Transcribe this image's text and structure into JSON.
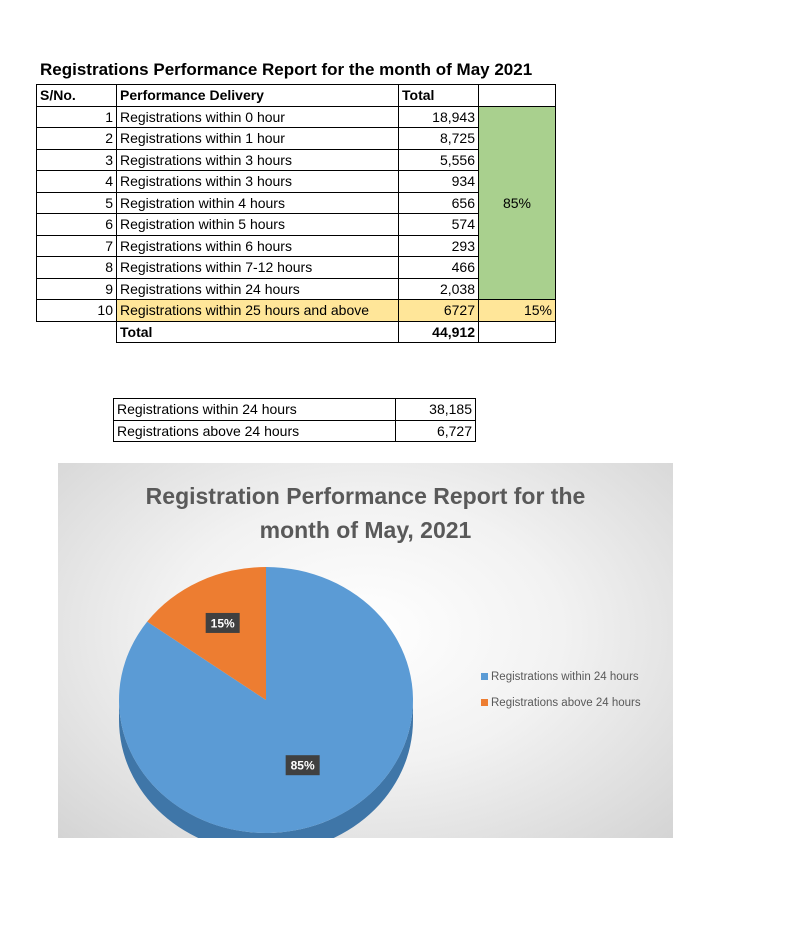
{
  "report": {
    "title": "Registrations Performance Report for the month of May 2021",
    "headers": {
      "sno": "S/No.",
      "delivery": "Performance Delivery",
      "total": "Total"
    },
    "rows": [
      {
        "sno": "1",
        "label": "Registrations within 0 hour",
        "total": "18,943"
      },
      {
        "sno": "2",
        "label": "Registrations within 1 hour",
        "total": "8,725"
      },
      {
        "sno": "3",
        "label": "Registrations within 3 hours",
        "total": "5,556"
      },
      {
        "sno": "4",
        "label": "Registrations within 3 hours",
        "total": "934"
      },
      {
        "sno": "5",
        "label": "Registration within 4 hours",
        "total": "656"
      },
      {
        "sno": "6",
        "label": "Registration within 5 hours",
        "total": "574"
      },
      {
        "sno": "7",
        "label": "Registrations within 6 hours",
        "total": "293"
      },
      {
        "sno": "8",
        "label": "Registrations within 7-12 hours",
        "total": "466"
      },
      {
        "sno": "9",
        "label": "Registrations within 24 hours",
        "total": "2,038"
      },
      {
        "sno": "10",
        "label": "Registrations within 25 hours and above",
        "total": "6727"
      }
    ],
    "group_percent_green": "85%",
    "group_percent_yellow": "15%",
    "total_label": "Total",
    "total_value": "44,912"
  },
  "summary": [
    {
      "label": "Registrations within 24 hours",
      "value": "38,185"
    },
    {
      "label": "Registrations above 24 hours",
      "value": "6,727"
    }
  ],
  "colors": {
    "green": "#a9d08e",
    "yellow": "#ffe699",
    "blue": "#5b9bd5",
    "orange": "#ed7d31"
  },
  "chart_data": {
    "type": "pie",
    "title_line1": "Registration Performance Report for the",
    "title_line2": "month of May, 2021",
    "categories": [
      "Registrations within 24 hours",
      "Registrations above 24 hours"
    ],
    "values": [
      38185,
      6727
    ],
    "labels": [
      "85%",
      "15%"
    ],
    "legend_placement": "right"
  }
}
